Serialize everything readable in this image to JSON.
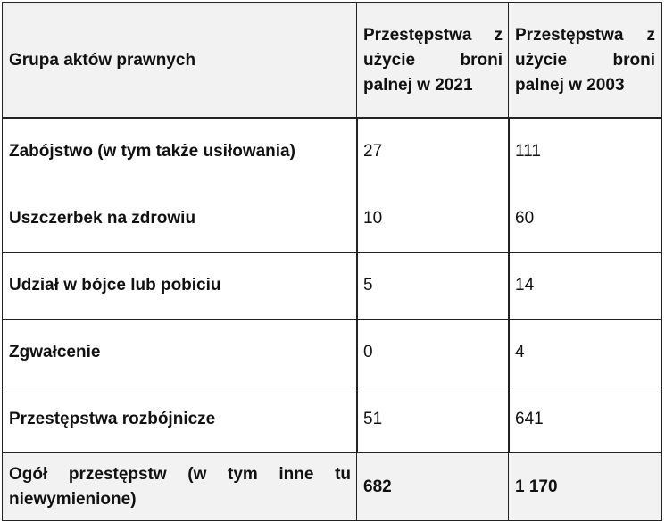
{
  "table": {
    "columns": [
      "Grupa aktów prawnych",
      "Przestępstwa z użycie broni palnej w 2021",
      "Przestępstwa z użycie broni palnej w 2003"
    ],
    "rows": [
      [
        "Zabójstwo (w tym także usiłowania)",
        "27",
        "111"
      ],
      [
        "Uszczerbek na zdrowiu",
        "10",
        "60"
      ],
      [
        "Udział w bójce lub pobiciu",
        "5",
        "14"
      ],
      [
        "Zgwałcenie",
        "0",
        "4"
      ],
      [
        "Przestępstwa rozbójnicze",
        "51",
        "641"
      ],
      [
        "Ogół przestępstw (w tym inne tu niewymienione)",
        "682",
        "1 170"
      ]
    ]
  }
}
